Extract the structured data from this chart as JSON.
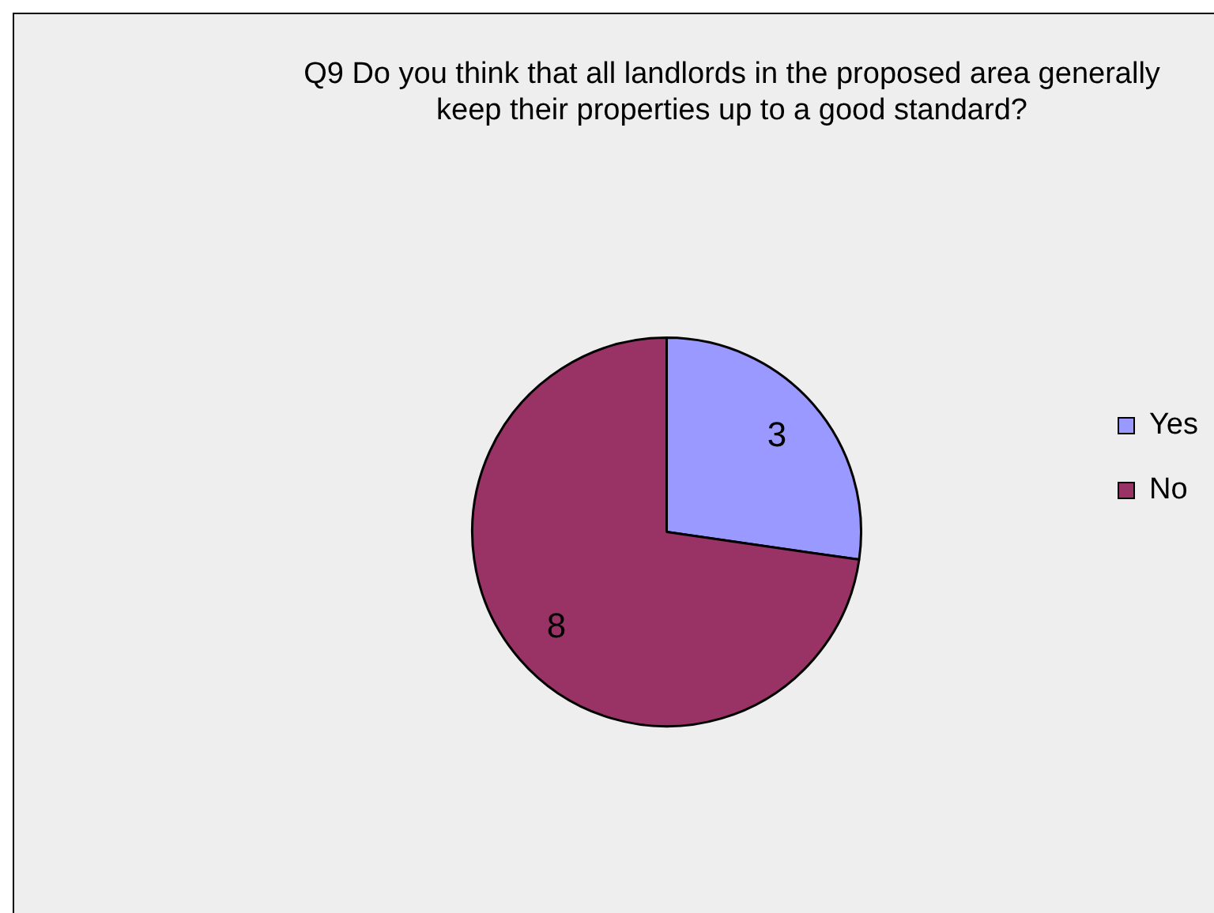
{
  "chart_data": {
    "type": "pie",
    "title": "Q9 Do you think that all landlords in the proposed area generally keep their properties up to a good standard?",
    "categories": [
      "Yes",
      "No"
    ],
    "values": [
      3,
      8
    ],
    "colors": [
      "#9999ff",
      "#993366"
    ],
    "data_labels": true,
    "legend": "right"
  }
}
